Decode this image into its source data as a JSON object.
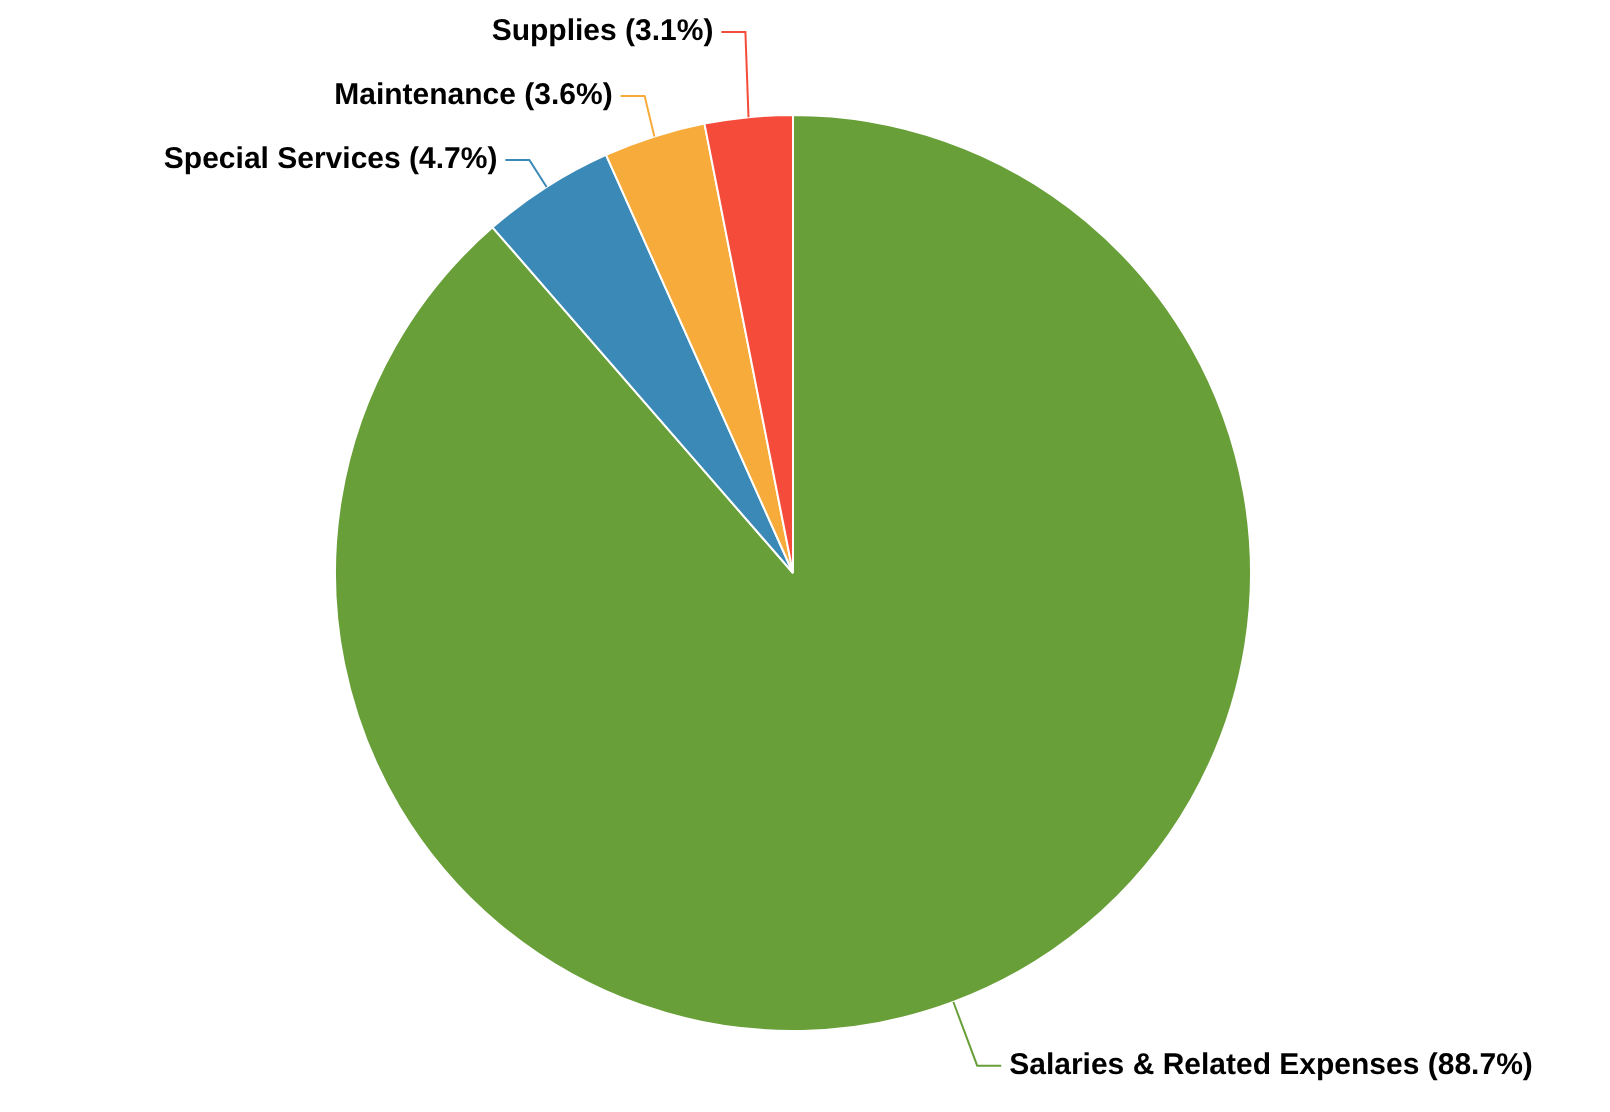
{
  "chart_data": {
    "type": "pie",
    "categories": [
      "Salaries & Related Expenses",
      "Special Services",
      "Maintenance",
      "Supplies"
    ],
    "values": [
      88.7,
      4.7,
      3.6,
      3.1
    ],
    "value_labels": [
      "(88.7%)",
      "(4.7%)",
      "(3.6%)",
      "(3.1%)"
    ],
    "colors": [
      "#689f38",
      "#3b89b7",
      "#f7ab3b",
      "#f44b3a"
    ],
    "legend": false
  }
}
